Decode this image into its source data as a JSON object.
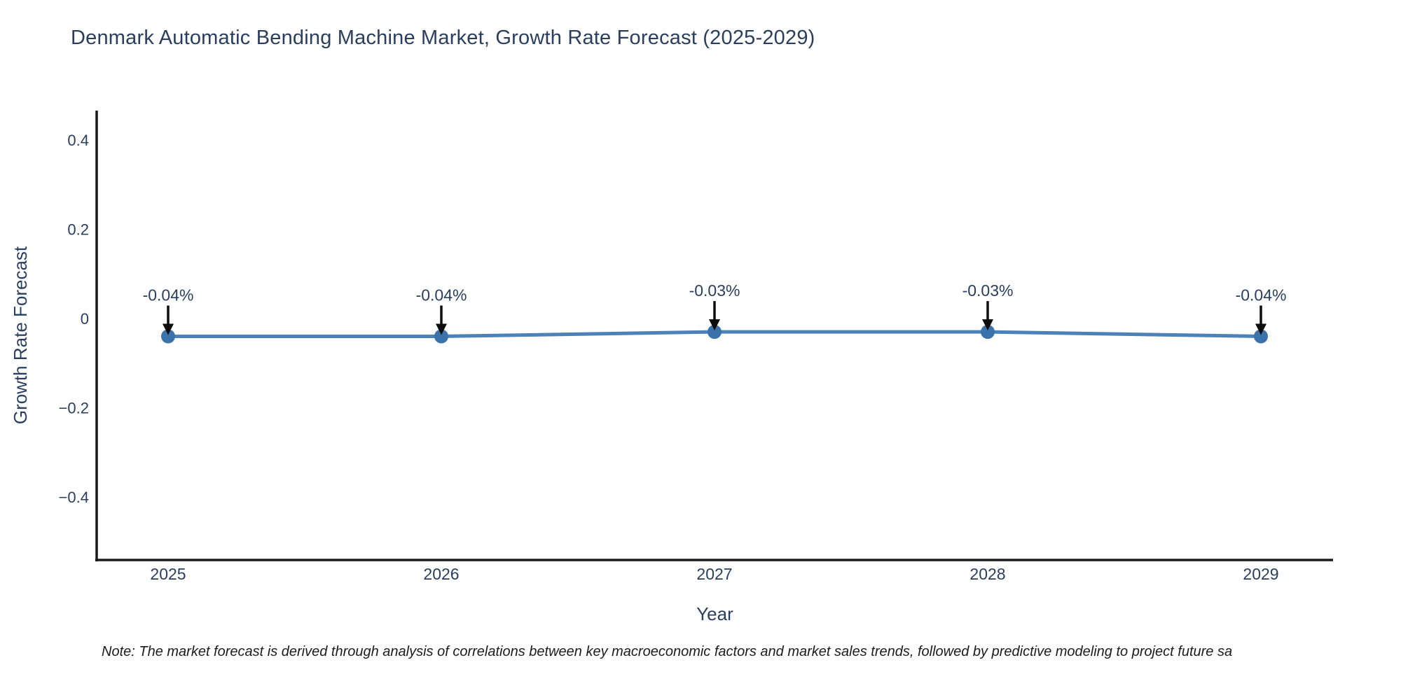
{
  "header": {
    "title": "Denmark Automatic Bending Machine Market, Growth Rate Forecast (2025-2029)"
  },
  "footer": {
    "note": "Note: The market forecast is derived through analysis of correlations between key macroeconomic factors and market sales trends, followed by predictive modeling to project future sa"
  },
  "chart_data": {
    "type": "line",
    "title": "Denmark Automatic Bending Machine Market, Growth Rate Forecast (2025-2029)",
    "xlabel": "Year",
    "ylabel": "Growth Rate Forecast",
    "x": [
      "2025",
      "2026",
      "2027",
      "2028",
      "2029"
    ],
    "series": [
      {
        "name": "Growth Rate Forecast",
        "values": [
          -0.04,
          -0.04,
          -0.03,
          -0.03,
          -0.04
        ],
        "point_labels": [
          "-0.04%",
          "-0.04%",
          "-0.03%",
          "-0.03%",
          "-0.04%"
        ]
      }
    ],
    "y_ticks": [
      {
        "value": 0.4,
        "label": "0.4"
      },
      {
        "value": 0.2,
        "label": "0.2"
      },
      {
        "value": 0,
        "label": "0"
      },
      {
        "value": -0.2,
        "label": "−0.2"
      },
      {
        "value": -0.4,
        "label": "−0.4"
      }
    ],
    "ylim": [
      -0.54,
      0.47
    ],
    "grid": false,
    "legend_position": "none",
    "annotation_style": "value label with downward black arrow to each marker",
    "colors": {
      "line": "#4d82b8",
      "marker": "#3b72a9",
      "arrow": "#0d0d0d",
      "axis_line": "#1a1a1a",
      "chart_text": "#2a3f5f",
      "title_text": "#2a3f5f",
      "note_text": "#1c1c1c",
      "background": "#ffffff"
    }
  }
}
